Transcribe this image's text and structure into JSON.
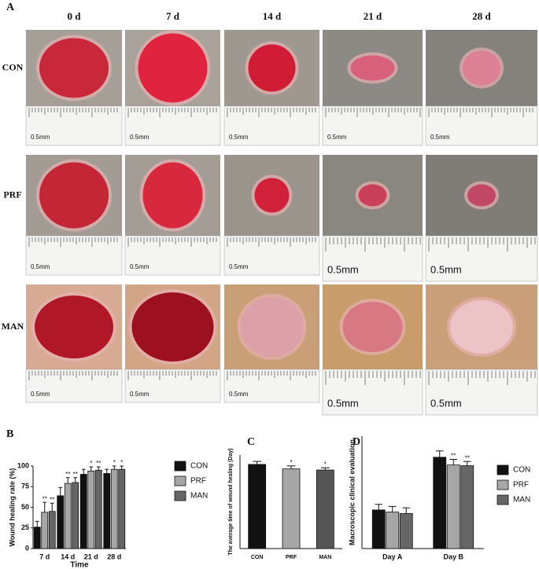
{
  "figure": {
    "panel_a": {
      "label": "A",
      "columns": [
        "0 d",
        "7 d",
        "14 d",
        "21 d",
        "28 d"
      ],
      "rows": [
        "CON",
        "PRF",
        "MAN"
      ],
      "scale_label": "0.5mm"
    }
  },
  "chart_data": [
    {
      "type": "grouped_bar",
      "label": "B",
      "ylabel": "Wound healing rate (%)",
      "xlabel": "Time",
      "categories": [
        "7 d",
        "14 d",
        "21 d",
        "28 d"
      ],
      "series": [
        {
          "name": "CON",
          "color": "#111111",
          "values": [
            26,
            64,
            90,
            91
          ],
          "errors": [
            7,
            10,
            6,
            5
          ],
          "annotations": [
            null,
            null,
            null,
            null
          ]
        },
        {
          "name": "PRF",
          "color": "#a6a6a6",
          "values": [
            44,
            79,
            94,
            96
          ],
          "errors": [
            12,
            7,
            5,
            4
          ],
          "annotations": [
            "**",
            "**",
            "*",
            "*"
          ]
        },
        {
          "name": "MAN",
          "color": "#666666",
          "values": [
            45,
            80,
            95,
            96
          ],
          "errors": [
            10,
            6,
            4,
            4
          ],
          "annotations": [
            "**",
            "**",
            "**",
            "*"
          ]
        }
      ],
      "ylim": [
        0,
        100
      ],
      "yticks": [
        0,
        25,
        50,
        75,
        100
      ],
      "legend": "right"
    },
    {
      "type": "bar",
      "label": "C",
      "ylabel": "The average time of wound healing (Day)",
      "categories": [
        "CON",
        "PRF",
        "MAN"
      ],
      "values": [
        22.5,
        21.3,
        21.0
      ],
      "errors": [
        0.8,
        0.8,
        0.6
      ],
      "annotations": [
        null,
        "*",
        "*"
      ],
      "colors": [
        "#111111",
        "#a6a6a6",
        "#555555"
      ],
      "ylim": [
        0,
        25
      ],
      "yticks": []
    },
    {
      "type": "grouped_bar",
      "label": "D",
      "ylabel": "Macroscopic clinical evaluation",
      "categories": [
        "Day A",
        "Day B"
      ],
      "series": [
        {
          "name": "CON",
          "color": "#111111",
          "values": [
            5.5,
            13.0
          ],
          "errors": [
            0.8,
            0.9
          ],
          "annotations": [
            null,
            null
          ]
        },
        {
          "name": "PRF",
          "color": "#a6a6a6",
          "values": [
            5.2,
            11.9
          ],
          "errors": [
            0.8,
            0.8
          ],
          "annotations": [
            null,
            "**"
          ]
        },
        {
          "name": "MAN",
          "color": "#666666",
          "values": [
            5.0,
            11.8
          ],
          "errors": [
            0.8,
            0.6
          ],
          "annotations": [
            null,
            "**"
          ]
        }
      ],
      "ylim": [
        0,
        16
      ],
      "yticks": [],
      "legend": "right"
    }
  ]
}
